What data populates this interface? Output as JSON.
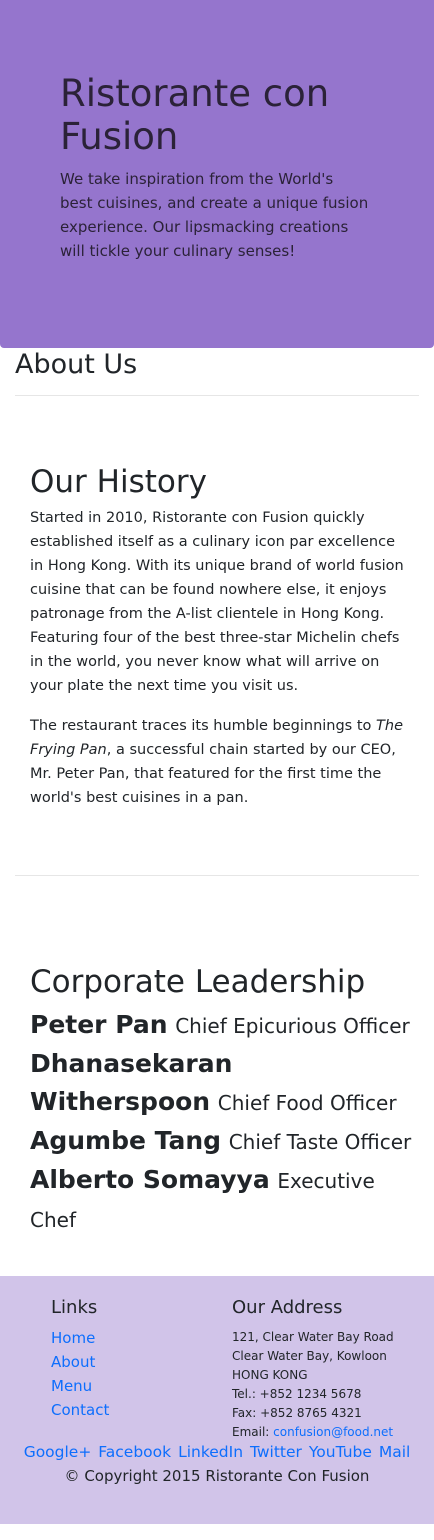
{
  "jumbotron": {
    "title": "Ristorante con Fusion",
    "tagline": "We take inspiration from the World's best cuisines, and create a unique fusion experience. Our lipsmacking creations will tickle your culinary senses!"
  },
  "about": {
    "title": "About Us"
  },
  "history": {
    "heading": "Our History",
    "para1": "Started in 2010, Ristorante con Fusion quickly established itself as a culinary icon par excellence in Hong Kong. With its unique brand of world fusion cuisine that can be found nowhere else, it enjoys patronage from the A-list clientele in Hong Kong. Featuring four of the best three-star Michelin chefs in the world, you never know what will arrive on your plate the next time you visit us.",
    "para2_before": "The restaurant traces its humble beginnings to ",
    "para2_em": "The Frying Pan",
    "para2_after": ", a successful chain started by our CEO, Mr. Peter Pan, that featured for the first time the world's best cuisines in a pan."
  },
  "leadership": {
    "heading": "Corporate Leadership",
    "leaders": [
      {
        "name": "Peter Pan",
        "title": "Chief Epicurious Officer"
      },
      {
        "name": "Dhanasekaran Witherspoon",
        "title": "Chief Food Officer"
      },
      {
        "name": "Agumbe Tang",
        "title": "Chief Taste Officer"
      },
      {
        "name": "Alberto Somayya",
        "title": "Executive Chef"
      }
    ]
  },
  "footer": {
    "links_heading": "Links",
    "links": [
      "Home",
      "About",
      "Menu",
      "Contact"
    ],
    "address_heading": "Our Address",
    "address": {
      "line1": "121, Clear Water Bay Road",
      "line2": "Clear Water Bay, Kowloon",
      "line3": "HONG KONG",
      "tel": "Tel.: +852 1234 5678",
      "fax": "Fax: +852 8765 4321",
      "email_label": "Email: ",
      "email": "confusion@food.net"
    },
    "social": [
      "Google+",
      "Facebook",
      "LinkedIn",
      "Twitter",
      "YouTube",
      "Mail"
    ],
    "copyright": "© Copyright 2015 Ristorante Con Fusion"
  }
}
